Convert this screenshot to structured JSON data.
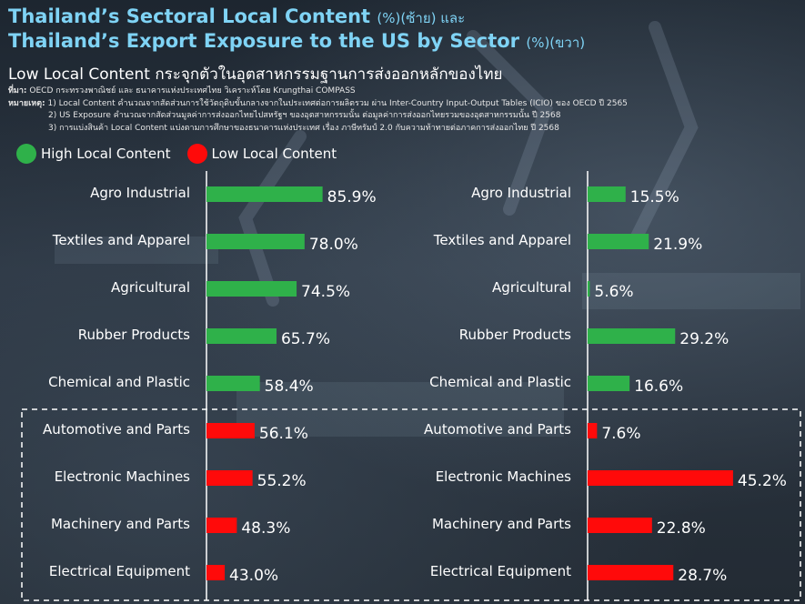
{
  "header": {
    "title_line1": "Thailand’s Sectoral Local Content",
    "title_line1_suffix": "(%)(ซ้าย) และ",
    "title_line2": "Thailand’s Export Exposure to the US by Sector",
    "title_line2_suffix": "(%)(ขวา)",
    "subtitle": "Low Local Content กระจุกตัวในอุตสาหกรรมฐานการส่งออกหลักของไทย"
  },
  "notes": {
    "source_label": "ที่มา:",
    "source_text": "OECD กระทรวงพาณิชย์ และ ธนาคารแห่งประเทศไทย วิเคราะห์โดย Krungthai COMPASS",
    "remark_label": "หมายเหตุ:",
    "remark_1": "1) Local Content คำนวณจากสัดส่วนการใช้วัตถุดิบขั้นกลางจากในประเทศต่อการผลิตรวม ผ่าน Inter-Country Input-Output Tables (ICIO) ของ OECD ปี 2565",
    "remark_2": "2) US Exposure คำนวณจากสัดส่วนมูลค่าการส่งออกไทยไปสหรัฐฯ ของอุตสาหกรรมนั้น ต่อมูลค่าการส่งออกไทยรวมของอุตสาหกรรมนั้น ปี 2568",
    "remark_3": "3) การแบ่งสินค้า Local Content แบ่งตามการศึกษาของธนาคารแห่งประเทศ เรื่อง ภาษีทรัมป์ 2.0 กับความท้าทายต่อภาคการส่งออกไทย ปี 2568"
  },
  "legend": {
    "high_label": "High Local Content",
    "low_label": "Low Local Content",
    "high_color": "#2fb14a",
    "low_color": "#ff0a0a"
  },
  "chart_data": [
    {
      "type": "bar",
      "orientation": "horizontal",
      "title": "Thailand’s Sectoral Local Content (%)",
      "categories": [
        "Agro Industrial",
        "Textiles and Apparel",
        "Agricultural",
        "Rubber Products",
        "Chemical and Plastic",
        "Automotive and Parts",
        "Electronic Machines",
        "Machinery and Parts",
        "Electrical Equipment"
      ],
      "values": [
        85.9,
        78.0,
        74.5,
        65.7,
        58.4,
        56.1,
        55.2,
        48.3,
        43.0
      ],
      "groups": [
        "High Local Content",
        "High Local Content",
        "High Local Content",
        "High Local Content",
        "High Local Content",
        "Low Local Content",
        "Low Local Content",
        "Low Local Content",
        "Low Local Content"
      ],
      "value_suffix": "%",
      "xlim": [
        35,
        100
      ],
      "grid": false
    },
    {
      "type": "bar",
      "orientation": "horizontal",
      "title": "Thailand’s Export Exposure to the US by Sector (%)",
      "categories": [
        "Agro Industrial",
        "Textiles and Apparel",
        "Agricultural",
        "Rubber Products",
        "Chemical and Plastic",
        "Automotive and Parts",
        "Electronic Machines",
        "Machinery and Parts",
        "Electrical Equipment"
      ],
      "values": [
        15.5,
        21.9,
        5.6,
        29.2,
        16.6,
        7.6,
        45.2,
        22.8,
        28.7
      ],
      "groups": [
        "High Local Content",
        "High Local Content",
        "High Local Content",
        "High Local Content",
        "High Local Content",
        "Low Local Content",
        "Low Local Content",
        "Low Local Content",
        "Low Local Content"
      ],
      "value_suffix": "%",
      "xlim": [
        5,
        50
      ],
      "grid": false
    }
  ]
}
